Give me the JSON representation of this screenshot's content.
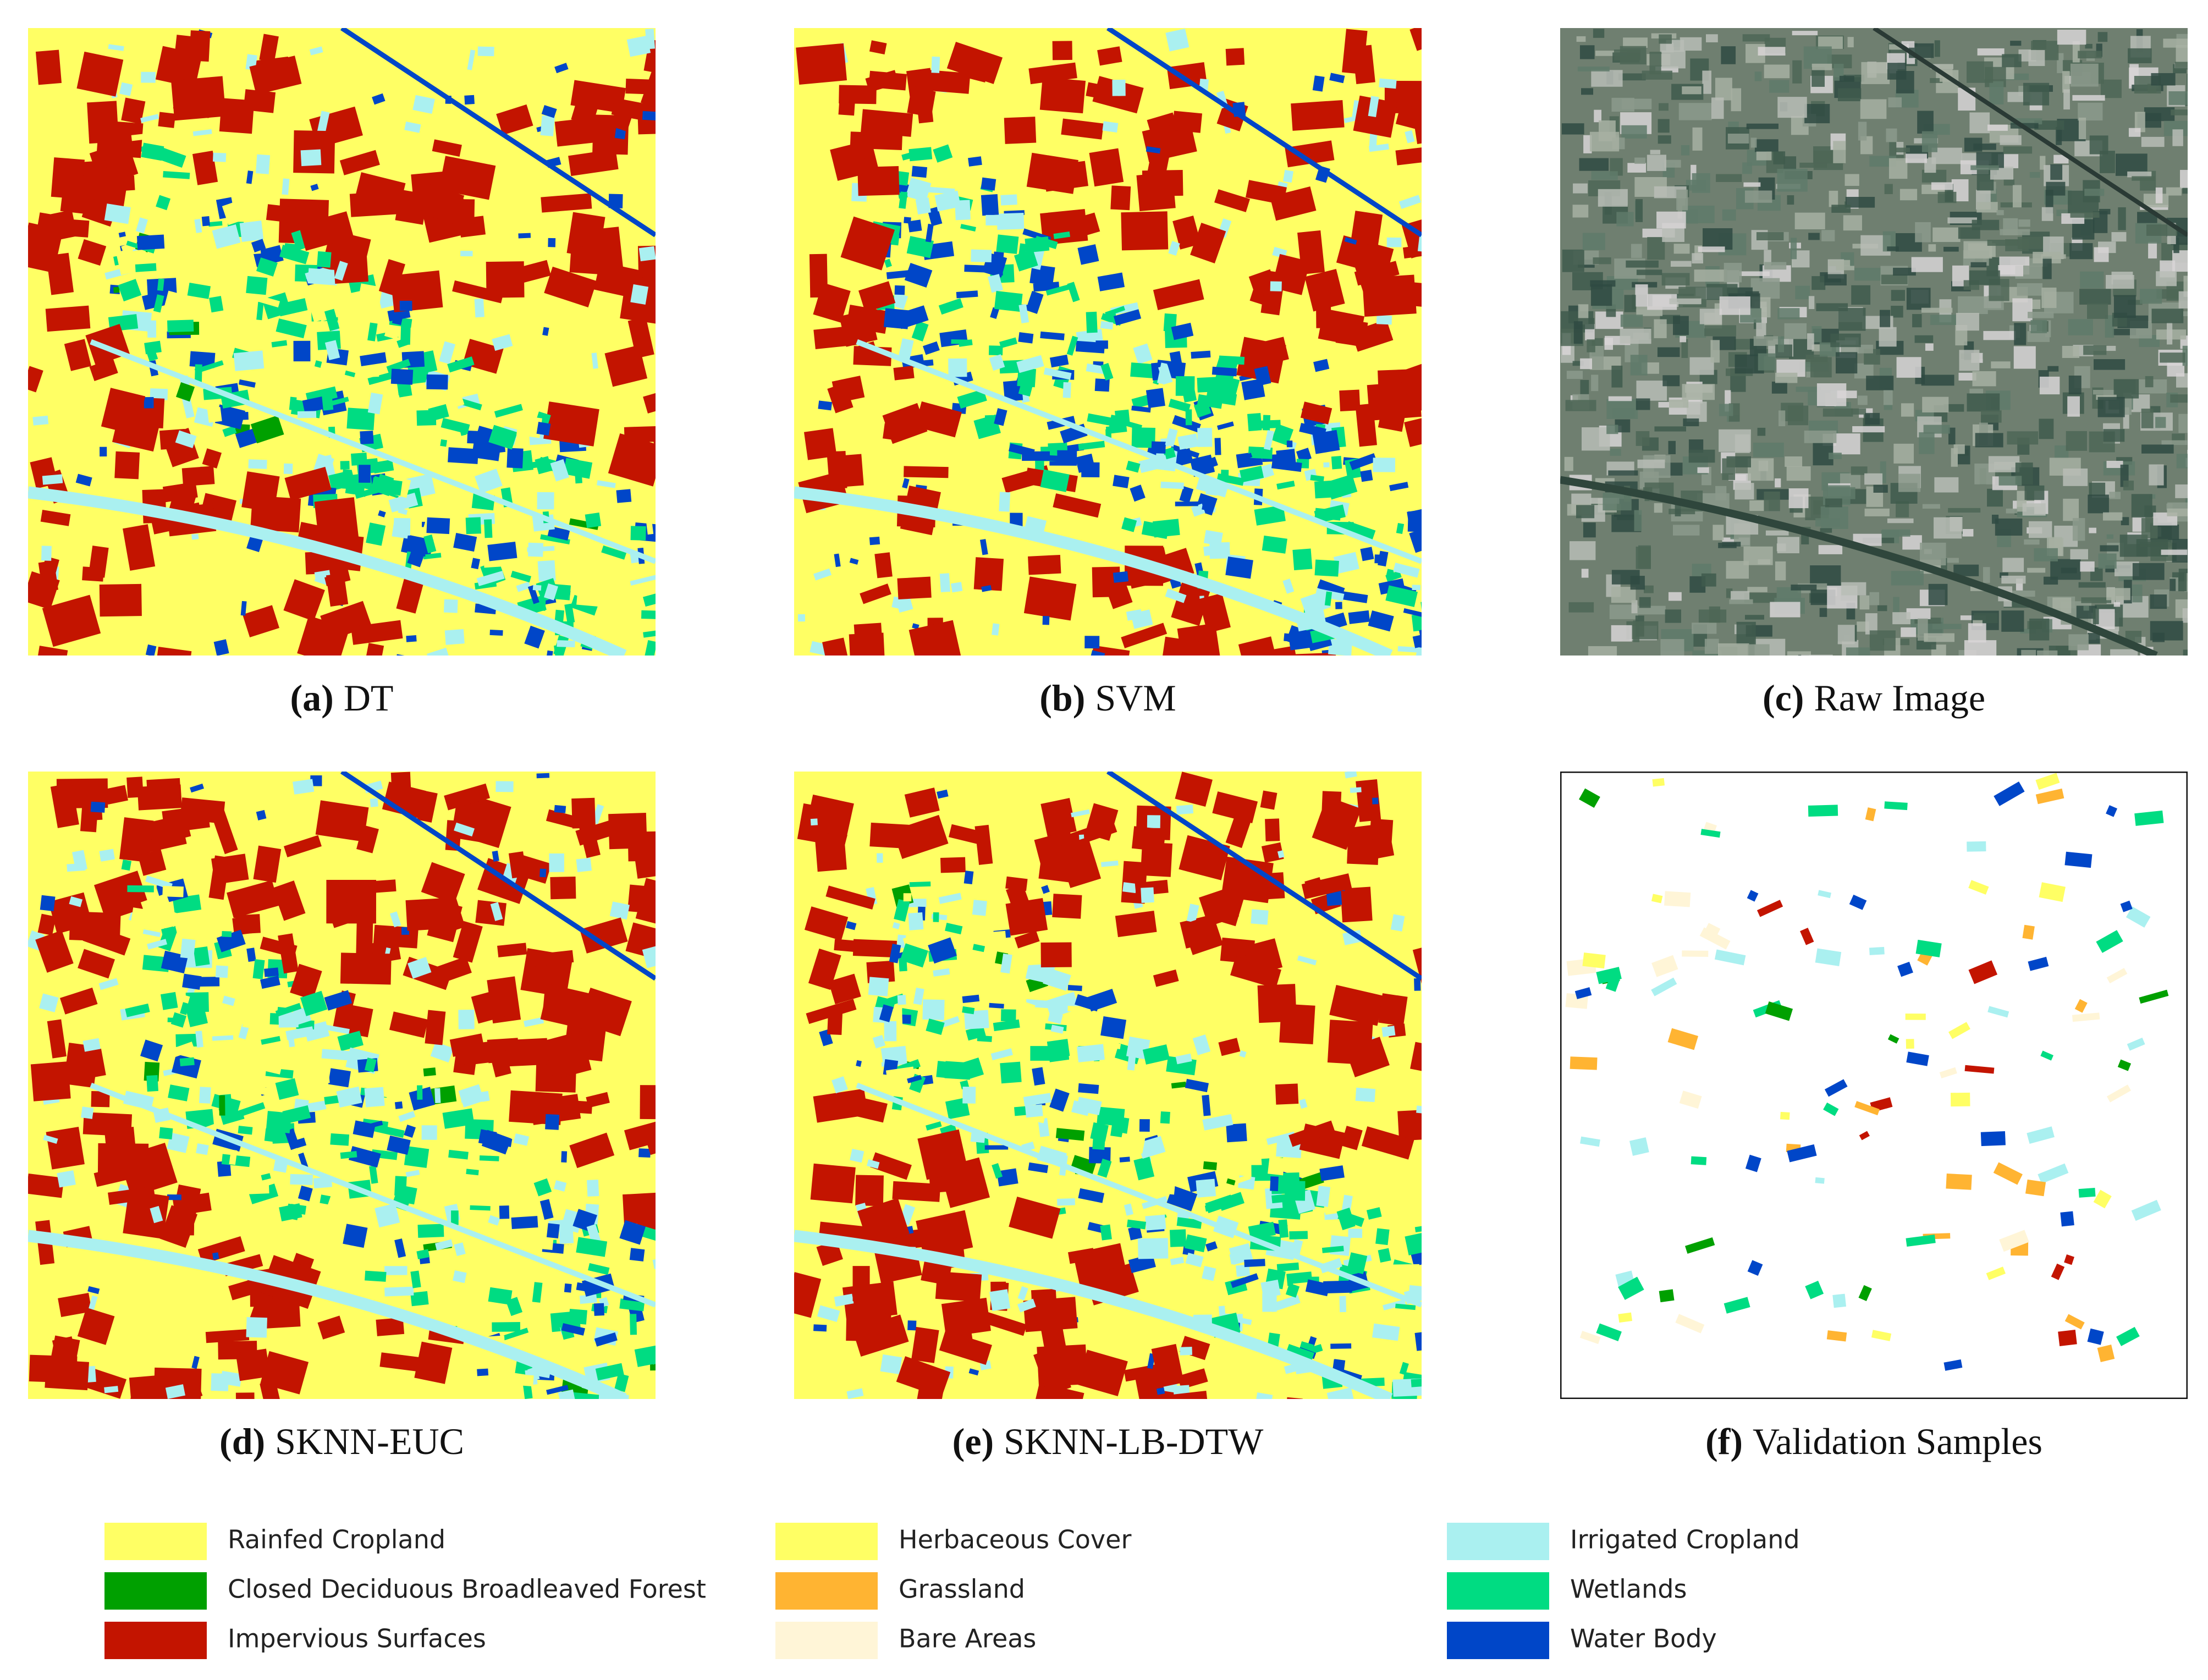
{
  "panels": [
    {
      "tag": "(a)",
      "name": "DT"
    },
    {
      "tag": "(b)",
      "name": "SVM"
    },
    {
      "tag": "(c)",
      "name": "Raw Image"
    },
    {
      "tag": "(d)",
      "name": "SKNN-EUC"
    },
    {
      "tag": "(e)",
      "name": "SKNN-LB-DTW"
    },
    {
      "tag": "(f)",
      "name": "Validation Samples"
    }
  ],
  "legend": [
    {
      "name": "Rainfed Cropland",
      "color": "#ffff64"
    },
    {
      "name": "Closed Deciduous Broadleaved Forest",
      "color": "#00a000"
    },
    {
      "name": "Impervious Surfaces",
      "color": "#c31400"
    },
    {
      "name": "Herbaceous Cover",
      "color": "#ffff64"
    },
    {
      "name": "Grassland",
      "color": "#ffb432"
    },
    {
      "name": "Bare Areas",
      "color": "#fff5d7"
    },
    {
      "name": "Irrigated Cropland",
      "color": "#aaf0f0"
    },
    {
      "name": "Wetlands",
      "color": "#00dc82"
    },
    {
      "name": "Water Body",
      "color": "#0046c8"
    }
  ]
}
